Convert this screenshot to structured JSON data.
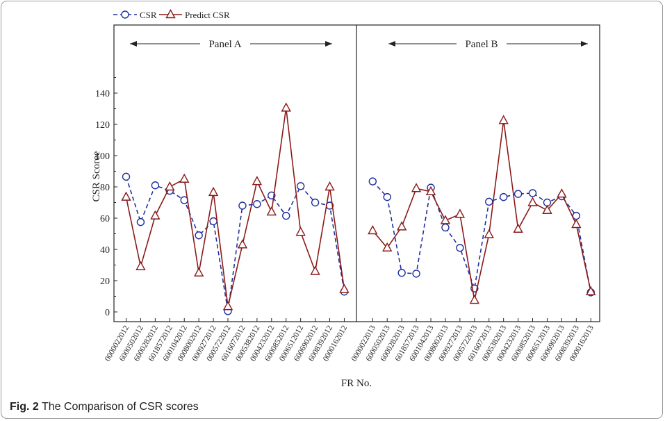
{
  "caption": {
    "label": "Fig. 2",
    "text": "The Comparison of CSR scores"
  },
  "colors": {
    "csr": "#1f2fa0",
    "predict": "#8b1a1a",
    "axis": "#222222",
    "text": "#222222"
  },
  "chart_data": {
    "type": "line",
    "xlabel": "FR No.",
    "ylabel": "CSR Scoree",
    "ylim": [
      0,
      140
    ],
    "yticks": [
      0,
      20,
      40,
      60,
      80,
      100,
      120,
      140
    ],
    "legend": {
      "placement": "top-left",
      "entries": [
        "CSR",
        "Predict CSR"
      ]
    },
    "grid": false,
    "panels": [
      {
        "label": "Panel A",
        "categories": [
          "0000022012",
          "6000502012",
          "6000282012",
          "6018572012",
          "6001042012",
          "0008002012",
          "0009272012",
          "0005722012",
          "6016072012",
          "0005382012",
          "0004232012",
          "6000852012",
          "0006512012",
          "6006902012",
          "6008392012",
          "0000162012"
        ],
        "series": [
          {
            "name": "CSR",
            "marker": "circle",
            "dash": true,
            "values": [
              86.5,
              57.5,
              81,
              77.5,
              71.5,
              49,
              58,
              0.5,
              68,
              69,
              74.5,
              61.5,
              80.5,
              70,
              68,
              13
            ]
          },
          {
            "name": "Predict CSR",
            "marker": "triangle",
            "dash": false,
            "values": [
              73.5,
              29,
              61.5,
              80,
              85,
              25,
              76.5,
              3.5,
              43,
              83.5,
              64,
              130.5,
              51,
              26,
              80,
              14.5
            ]
          }
        ]
      },
      {
        "label": "Panel B",
        "categories": [
          "0000022013",
          "6000502013",
          "6000282013",
          "6018572013",
          "6001042013",
          "0008002013",
          "0009272013",
          "0005722013",
          "6016072013",
          "0005382013",
          "0004232013",
          "6000852013",
          "0006512013",
          "6006902013",
          "6008392013",
          "0000162013"
        ],
        "series": [
          {
            "name": "CSR",
            "marker": "circle",
            "dash": true,
            "values": [
              83.5,
              73.5,
              25,
              24.5,
              79.5,
              54,
              41,
              15,
              70.5,
              73.5,
              75.5,
              76,
              70,
              74,
              61.5,
              12.5
            ]
          },
          {
            "name": "Predict CSR",
            "marker": "triangle",
            "dash": false,
            "values": [
              52,
              41,
              54.5,
              79,
              77,
              58.5,
              62.5,
              7.5,
              49.5,
              122.5,
              53,
              70,
              65,
              75.5,
              56,
              13
            ]
          }
        ]
      }
    ]
  }
}
